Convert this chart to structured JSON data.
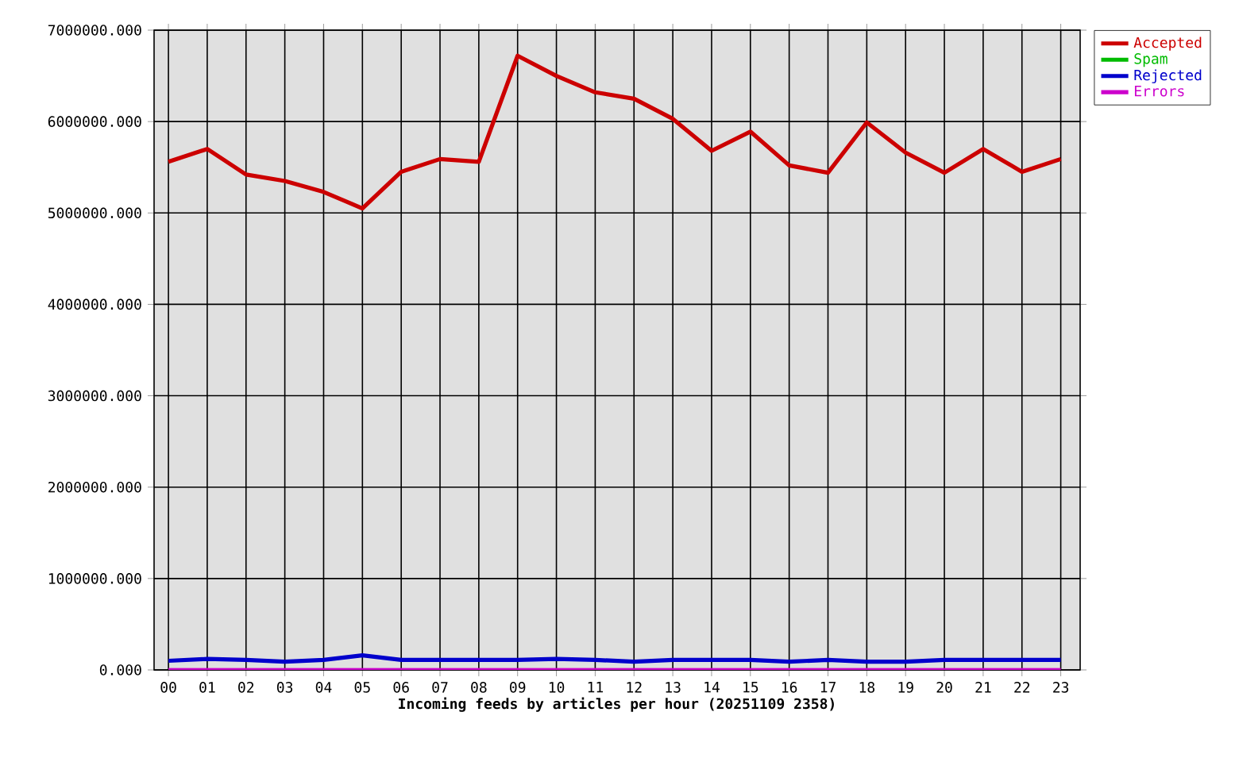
{
  "chart_data": {
    "type": "line",
    "xlabel": "Incoming feeds by articles per hour (20251109 2358)",
    "categories": [
      "00",
      "01",
      "02",
      "03",
      "04",
      "05",
      "06",
      "07",
      "08",
      "09",
      "10",
      "11",
      "12",
      "13",
      "14",
      "15",
      "16",
      "17",
      "18",
      "19",
      "20",
      "21",
      "22",
      "23"
    ],
    "series": [
      {
        "name": "Accepted",
        "color": "#cc0000",
        "values": [
          5560000,
          5700000,
          5420000,
          5350000,
          5230000,
          5050000,
          5450000,
          5590000,
          5560000,
          6720000,
          6500000,
          6320000,
          6250000,
          6030000,
          5680000,
          5890000,
          5520000,
          5440000,
          5990000,
          5660000,
          5440000,
          5700000,
          5450000,
          5590000
        ]
      },
      {
        "name": "Spam",
        "color": "#00bb00",
        "values": [
          null,
          null,
          null,
          null,
          null,
          null,
          null,
          null,
          null,
          null,
          null,
          null,
          null,
          null,
          null,
          null,
          null,
          null,
          null,
          null,
          null,
          null,
          null,
          null
        ]
      },
      {
        "name": "Rejected",
        "color": "#0000cc",
        "values": [
          100000,
          120000,
          110000,
          90000,
          110000,
          160000,
          110000,
          110000,
          110000,
          110000,
          120000,
          110000,
          90000,
          110000,
          110000,
          110000,
          90000,
          110000,
          90000,
          90000,
          110000,
          110000,
          110000,
          110000
        ]
      },
      {
        "name": "Errors",
        "color": "#cc00cc",
        "values": [
          0,
          0,
          0,
          0,
          0,
          0,
          0,
          0,
          0,
          0,
          0,
          0,
          0,
          0,
          0,
          0,
          0,
          0,
          0,
          0,
          0,
          0,
          0,
          0
        ]
      }
    ],
    "ylim": [
      0,
      7000000
    ],
    "yticks": [
      {
        "value": 0,
        "label": "0.000"
      },
      {
        "value": 1000000,
        "label": "1000000.000"
      },
      {
        "value": 2000000,
        "label": "2000000.000"
      },
      {
        "value": 3000000,
        "label": "3000000.000"
      },
      {
        "value": 4000000,
        "label": "4000000.000"
      },
      {
        "value": 5000000,
        "label": "5000000.000"
      },
      {
        "value": 6000000,
        "label": "6000000.000"
      },
      {
        "value": 7000000,
        "label": "7000000.000"
      }
    ],
    "grid": true,
    "legend": "top right",
    "line_style": "solid"
  }
}
